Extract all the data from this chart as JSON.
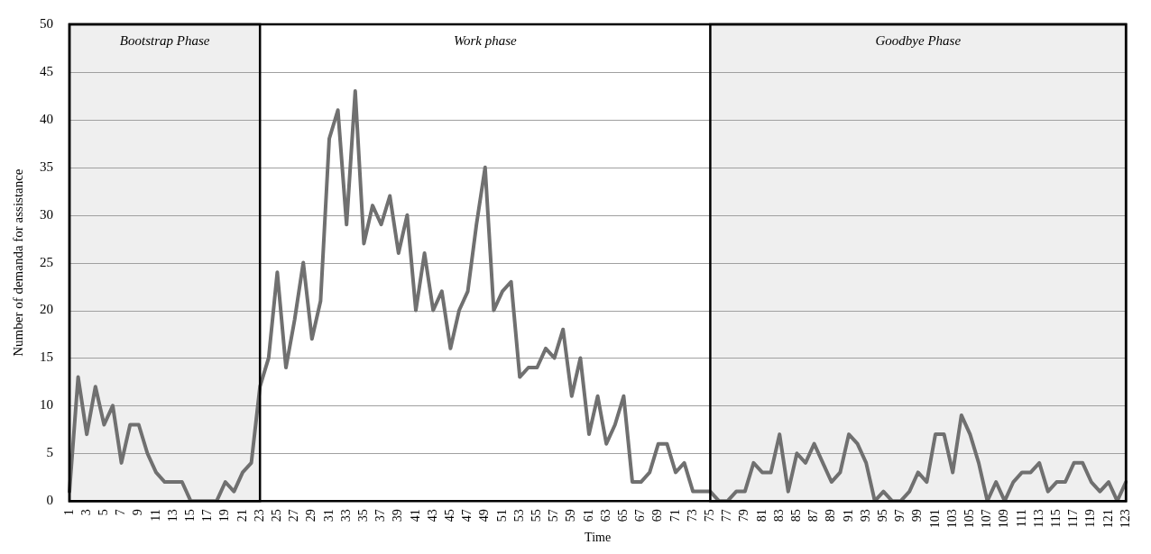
{
  "chart_data": {
    "type": "line",
    "xlabel": "Time",
    "ylabel": "Number of demanda for assistance",
    "categories": [
      "1",
      null,
      "3",
      null,
      "5",
      null,
      "7",
      null,
      "9",
      null,
      "11",
      null,
      "13",
      null,
      "15",
      null,
      "17",
      null,
      "19",
      null,
      "21",
      null,
      "23",
      null,
      "25",
      null,
      "27",
      null,
      "29",
      null,
      "31",
      null,
      "33",
      null,
      "35",
      null,
      "37",
      null,
      "39",
      null,
      "41",
      null,
      "43",
      null,
      "45",
      null,
      "47",
      null,
      "49",
      null,
      "51",
      null,
      "53",
      null,
      "55",
      null,
      "57",
      null,
      "59",
      null,
      "61",
      null,
      "63",
      null,
      "65",
      null,
      "67",
      null,
      "69",
      null,
      "71",
      null,
      "73",
      null,
      "75",
      null,
      "77",
      null,
      "79",
      null,
      "81",
      null,
      "83",
      null,
      "85",
      null,
      "87",
      null,
      "89",
      null,
      "91",
      null,
      "93",
      null,
      "95",
      null,
      "97",
      null,
      "99",
      null,
      "101",
      null,
      "103",
      null,
      "105",
      null,
      "107",
      null,
      "109",
      null,
      "111",
      null,
      "113",
      null,
      "115",
      null,
      "117",
      null,
      "119",
      null,
      "121",
      null,
      "123"
    ],
    "series": [
      {
        "color": "#707070",
        "values": [
          1,
          13,
          7,
          12,
          8,
          10,
          4,
          8,
          8,
          5,
          3,
          2,
          2,
          2,
          0,
          0,
          0,
          0,
          2,
          1,
          3,
          4,
          12,
          15,
          24,
          14,
          19,
          25,
          17,
          21,
          38,
          41,
          29,
          43,
          27,
          31,
          29,
          32,
          26,
          30,
          20,
          26,
          20,
          22,
          16,
          20,
          22,
          29,
          35,
          20,
          22,
          23,
          13,
          14,
          14,
          16,
          15,
          18,
          11,
          15,
          7,
          11,
          6,
          8,
          11,
          2,
          2,
          3,
          6,
          6,
          3,
          4,
          1,
          1,
          1,
          0,
          0,
          1,
          1,
          4,
          3,
          3,
          7,
          1,
          5,
          4,
          6,
          4,
          2,
          3,
          7,
          6,
          4,
          0,
          1,
          0,
          0,
          1,
          3,
          2,
          7,
          7,
          3,
          9,
          7,
          4,
          0,
          2,
          0,
          2,
          3,
          3,
          4,
          1,
          2,
          2,
          4,
          4,
          2,
          1,
          2,
          0,
          2
        ]
      }
    ],
    "ylim": [
      0,
      50
    ],
    "yticks": [
      0,
      5,
      10,
      15,
      20,
      25,
      30,
      35,
      40,
      45,
      50
    ],
    "grid": "y",
    "legend": false,
    "annotations": [
      "Work phase"
    ],
    "marker": "none",
    "line_style": "solid",
    "bands": [
      {
        "axis": "x",
        "from": "1",
        "to": "23",
        "label": "Bootstrap Phase",
        "color": "#efefef"
      },
      {
        "axis": "x",
        "from": "75",
        "to": "123",
        "label": "Goodbye Phase",
        "color": "#efefef"
      }
    ]
  }
}
